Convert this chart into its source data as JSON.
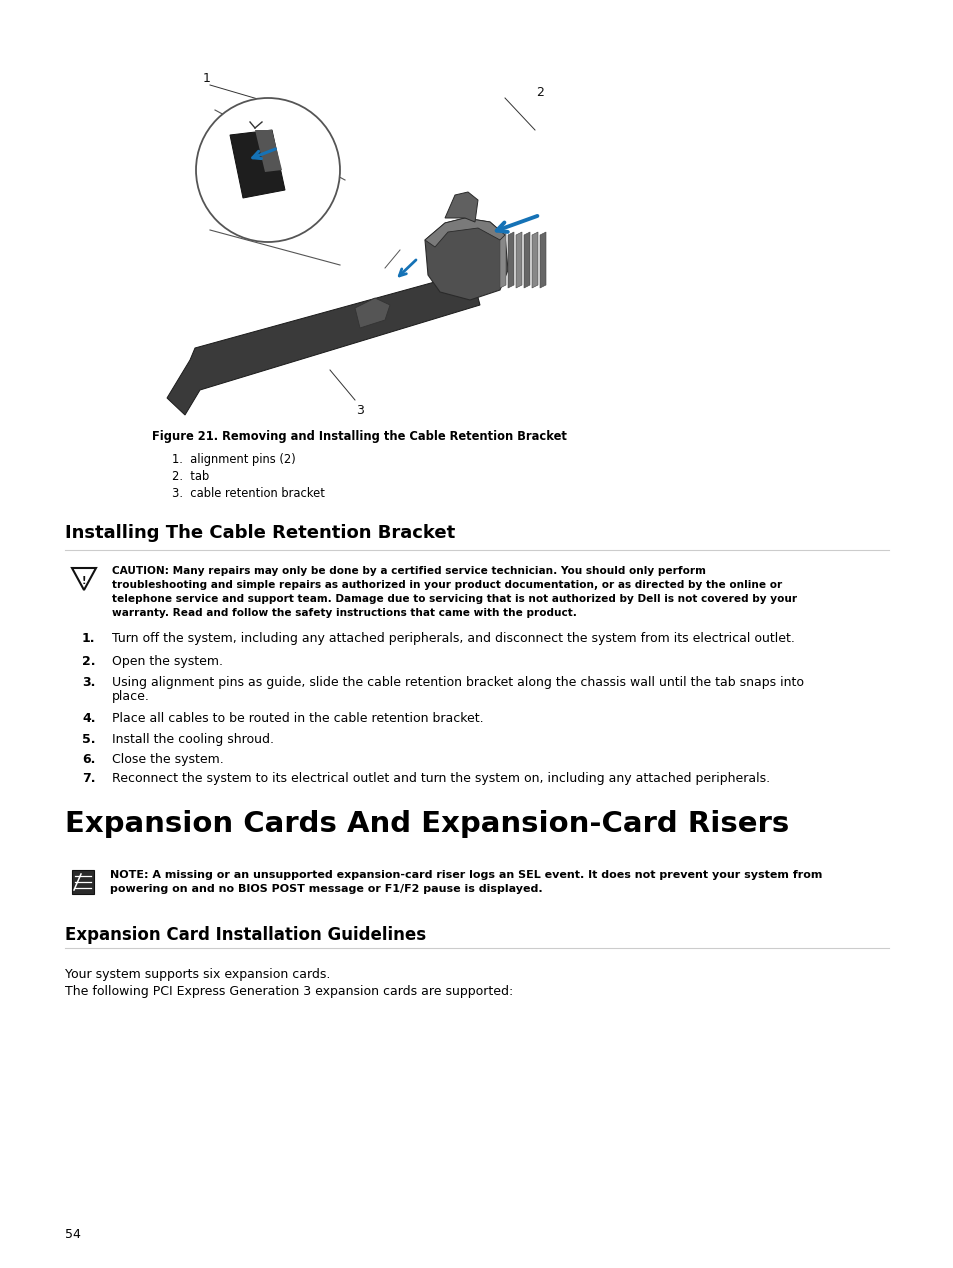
{
  "bg_color": "#ffffff",
  "page_number": "54",
  "figure_caption": "Figure 21. Removing and Installing the Cable Retention Bracket",
  "figure_items": [
    "1.  alignment pins (2)",
    "2.  tab",
    "3.  cable retention bracket"
  ],
  "section1_title": "Installing The Cable Retention Bracket",
  "caution_lines": [
    "CAUTION: Many repairs may only be done by a certified service technician. You should only perform",
    "troubleshooting and simple repairs as authorized in your product documentation, or as directed by the online or",
    "telephone service and support team. Damage due to servicing that is not authorized by Dell is not covered by your",
    "warranty. Read and follow the safety instructions that came with the product."
  ],
  "steps": [
    "Turn off the system, including any attached peripherals, and disconnect the system from its electrical outlet.",
    "Open the system.",
    "Using alignment pins as guide, slide the cable retention bracket along the chassis wall until the tab snaps into\nplace.",
    "Place all cables to be routed in the cable retention bracket.",
    "Install the cooling shroud.",
    "Close the system.",
    "Reconnect the system to its electrical outlet and turn the system on, including any attached peripherals."
  ],
  "section2_title": "Expansion Cards And Expansion-Card Risers",
  "note_lines": [
    "NOTE: A missing or an unsupported expansion-card riser logs an SEL event. It does not prevent your system from",
    "powering on and no BIOS POST message or F1/F2 pause is displayed."
  ],
  "section3_title": "Expansion Card Installation Guidelines",
  "para1": "Your system supports six expansion cards.",
  "para2": "The following PCI Express Generation 3 expansion cards are supported:"
}
